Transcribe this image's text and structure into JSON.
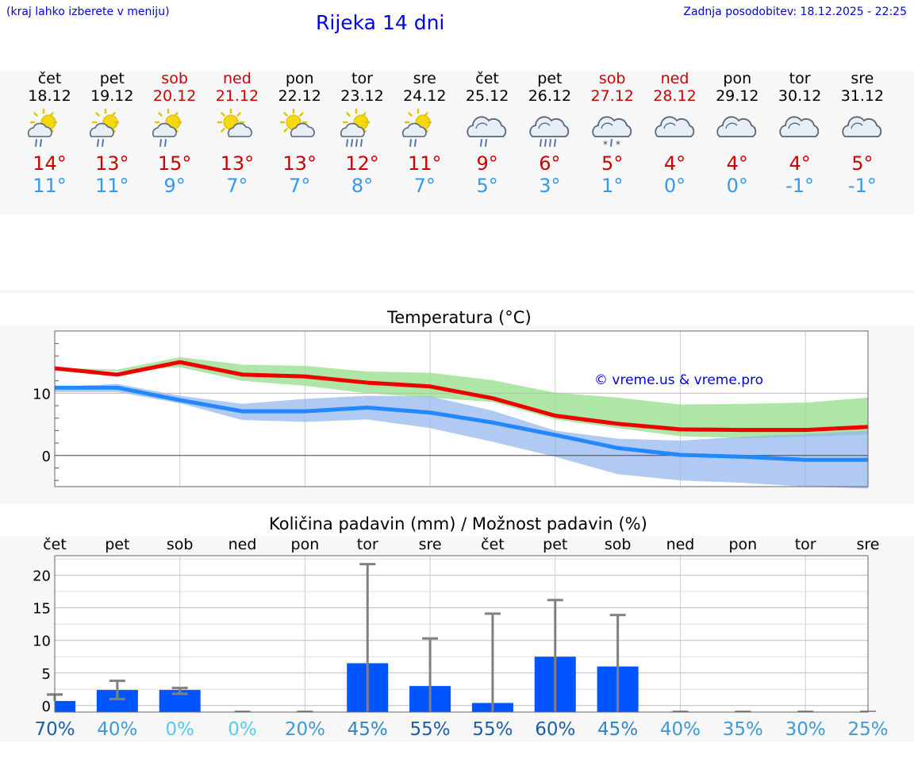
{
  "header": {
    "hint": "(kraj lahko izberete v meniju)",
    "title": "Rijeka 14 dni",
    "updated": "Zadnja posodobitev: 18.12.2025 - 22:25"
  },
  "days": [
    {
      "name": "čet",
      "date": "18.12",
      "max": "14°",
      "min": "11°",
      "weekend": false,
      "icon": "sun-cloud-rain-icon"
    },
    {
      "name": "pet",
      "date": "19.12",
      "max": "13°",
      "min": "11°",
      "weekend": false,
      "icon": "sun-cloud-rain-icon"
    },
    {
      "name": "sob",
      "date": "20.12",
      "max": "15°",
      "min": "9°",
      "weekend": true,
      "icon": "sun-cloud-rain-icon"
    },
    {
      "name": "ned",
      "date": "21.12",
      "max": "13°",
      "min": "7°",
      "weekend": true,
      "icon": "sun-cloud-icon"
    },
    {
      "name": "pon",
      "date": "22.12",
      "max": "13°",
      "min": "7°",
      "weekend": false,
      "icon": "sun-cloud-icon"
    },
    {
      "name": "tor",
      "date": "23.12",
      "max": "12°",
      "min": "8°",
      "weekend": false,
      "icon": "sun-cloud-heavy-rain-icon"
    },
    {
      "name": "sre",
      "date": "24.12",
      "max": "11°",
      "min": "7°",
      "weekend": false,
      "icon": "sun-cloud-rain-icon"
    },
    {
      "name": "čet",
      "date": "25.12",
      "max": "9°",
      "min": "5°",
      "weekend": false,
      "icon": "cloud-rain-icon"
    },
    {
      "name": "pet",
      "date": "26.12",
      "max": "6°",
      "min": "3°",
      "weekend": false,
      "icon": "cloud-heavy-rain-icon"
    },
    {
      "name": "sob",
      "date": "27.12",
      "max": "5°",
      "min": "1°",
      "weekend": true,
      "icon": "cloud-sleet-icon"
    },
    {
      "name": "ned",
      "date": "28.12",
      "max": "4°",
      "min": "0°",
      "weekend": true,
      "icon": "cloud-icon"
    },
    {
      "name": "pon",
      "date": "29.12",
      "max": "4°",
      "min": "0°",
      "weekend": false,
      "icon": "cloud-icon"
    },
    {
      "name": "tor",
      "date": "30.12",
      "max": "4°",
      "min": "-1°",
      "weekend": false,
      "icon": "cloud-icon"
    },
    {
      "name": "sre",
      "date": "31.12",
      "max": "5°",
      "min": "-1°",
      "weekend": false,
      "icon": "cloud-icon"
    }
  ],
  "colors": {
    "max_line": "#ee0000",
    "min_line": "#2288ff",
    "max_band": "#99e08f",
    "min_band": "#8fb3ee",
    "bar": "#0055ff",
    "whisker": "#808080"
  },
  "chart_data": [
    {
      "type": "line",
      "title": "Temperatura (°C)",
      "watermark": "© vreme.us & vreme.pro",
      "ylim": [
        -5,
        20
      ],
      "yticks": [
        "10",
        "0"
      ],
      "ytick_values": [
        10,
        0
      ],
      "x": [
        "18.12",
        "19.12",
        "20.12",
        "21.12",
        "22.12",
        "23.12",
        "24.12",
        "25.12",
        "26.12",
        "27.12",
        "28.12",
        "29.12",
        "30.12",
        "31.12"
      ],
      "series": [
        {
          "name": "max",
          "values": [
            14.0,
            13.0,
            15.0,
            13.0,
            12.7,
            11.7,
            11.1,
            9.2,
            6.4,
            5.1,
            4.2,
            4.1,
            4.1,
            4.6
          ],
          "band_low": [
            14.0,
            13.5,
            14.2,
            12.0,
            11.2,
            10.0,
            9.3,
            8.6,
            5.8,
            4.4,
            3.1,
            2.8,
            3.0,
            3.4
          ],
          "band_high": [
            14.1,
            13.8,
            15.8,
            14.6,
            14.4,
            13.5,
            13.3,
            12.1,
            10.1,
            9.3,
            8.2,
            8.3,
            8.5,
            9.3
          ]
        },
        {
          "name": "min",
          "values": [
            10.9,
            10.9,
            8.9,
            7.1,
            7.1,
            7.7,
            6.9,
            5.3,
            3.3,
            1.2,
            0.1,
            -0.2,
            -0.7,
            -0.7
          ],
          "band_low": [
            10.2,
            10.2,
            8.4,
            5.7,
            5.4,
            5.8,
            4.4,
            2.2,
            -0.2,
            -3.0,
            -4.0,
            -4.4,
            -5.0,
            -5.3
          ],
          "band_high": [
            11.0,
            11.5,
            9.6,
            8.3,
            9.1,
            9.6,
            9.5,
            7.2,
            4.0,
            2.7,
            2.4,
            3.0,
            3.5,
            4.0
          ]
        }
      ]
    },
    {
      "type": "bar",
      "title": "Količina padavin (mm) / Možnost padavin (%)",
      "categories": [
        "čet",
        "pet",
        "sob",
        "ned",
        "pon",
        "tor",
        "sre",
        "čet",
        "pet",
        "sob",
        "ned",
        "pon",
        "tor",
        "sre"
      ],
      "values": [
        0.7,
        2.4,
        2.4,
        0,
        0,
        6.5,
        3.0,
        0.4,
        7.5,
        6.0,
        0,
        0,
        0,
        0
      ],
      "error_high": [
        1.7,
        3.8,
        2.7,
        0,
        0,
        21.7,
        10.3,
        14.1,
        16.2,
        13.9,
        0,
        0,
        0,
        0
      ],
      "error_low": [
        1.7,
        1.0,
        1.8,
        0,
        0,
        0,
        0,
        0,
        0,
        0,
        0,
        0,
        0,
        0
      ],
      "ylim": [
        -1,
        23
      ],
      "yticks": [
        "20",
        "15",
        "10",
        "5",
        "0"
      ],
      "ytick_values": [
        20,
        15,
        10,
        5,
        0
      ],
      "probability": [
        "70%",
        "40%",
        "0%",
        "0%",
        "20%",
        "45%",
        "55%",
        "55%",
        "60%",
        "45%",
        "40%",
        "35%",
        "30%",
        "25%"
      ],
      "probability_colors": [
        "#1a5fa8",
        "#3d9ad8",
        "#55ccee",
        "#55ccee",
        "#3d9ad8",
        "#2f86c8",
        "#1a5fa8",
        "#1a5fa8",
        "#1a5fa8",
        "#2f86c8",
        "#3d9ad8",
        "#3d9ad8",
        "#3d9ad8",
        "#3d9ad8"
      ]
    }
  ]
}
